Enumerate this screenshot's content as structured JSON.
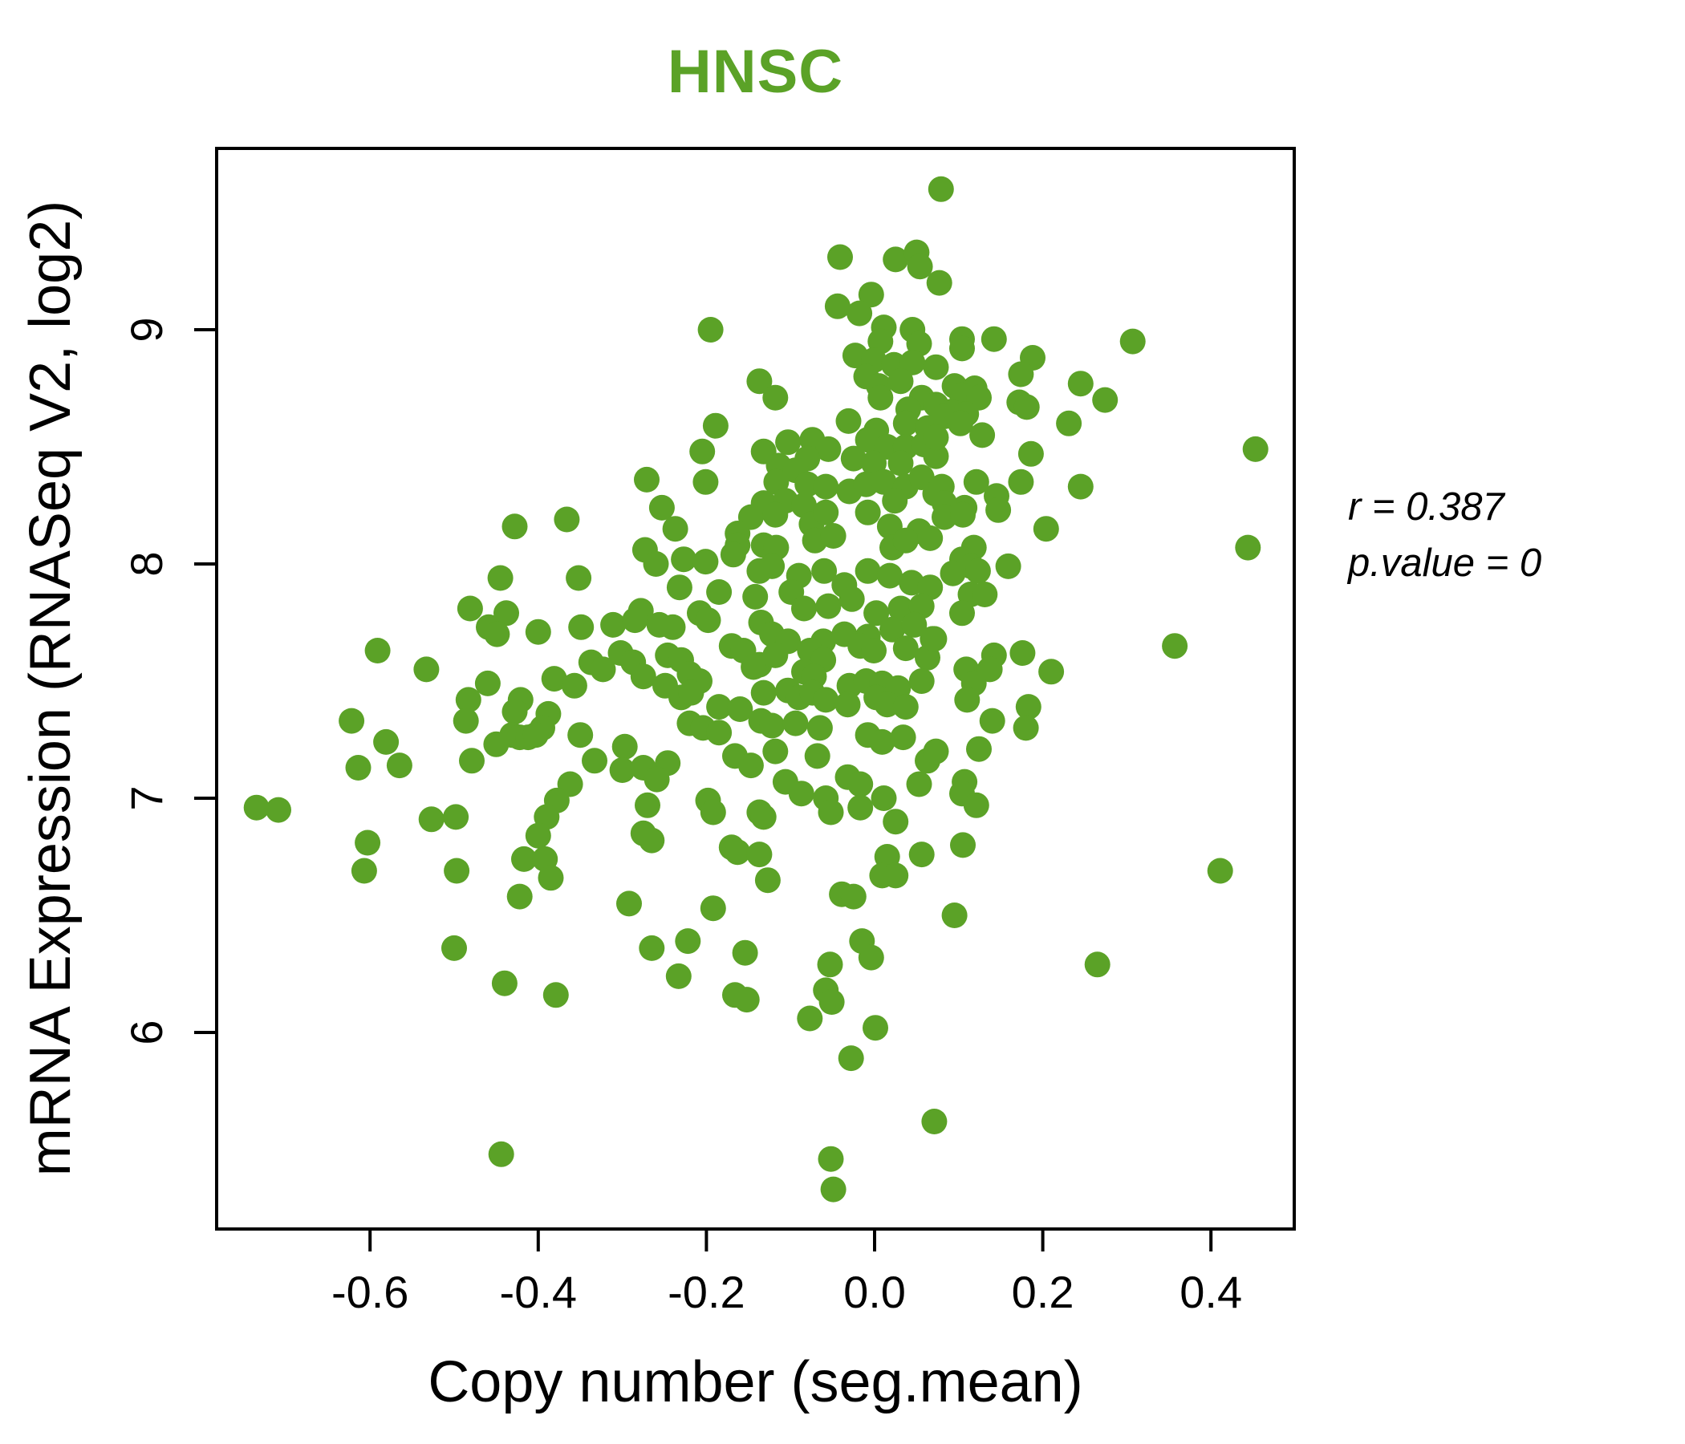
{
  "chart_data": {
    "type": "scatter",
    "title": "HNSC",
    "title_color": "#5ba227",
    "point_color": "#5ba227",
    "xlabel": "Copy number (seg.mean)",
    "ylabel": "mRNA Expression (RNASeq V2, log2)",
    "annotation": {
      "r_text": "r = 0.387",
      "p_text": "p.value = 0"
    },
    "x_ticks": [
      -0.6,
      -0.4,
      -0.2,
      0.0,
      0.2,
      0.4
    ],
    "x_tick_labels": [
      "-0.6",
      "-0.4",
      "-0.2",
      "0.0",
      "0.2",
      "0.4"
    ],
    "y_ticks": [
      6,
      7,
      8,
      9
    ],
    "y_tick_labels": [
      "6",
      "7",
      "8",
      "9"
    ],
    "xlim": [
      -0.78,
      0.5
    ],
    "ylim": [
      5.16,
      9.77
    ],
    "grid": false,
    "legend": false,
    "points": [
      [
        0.079,
        9.6
      ],
      [
        -0.041,
        9.31
      ],
      [
        0.025,
        9.3
      ],
      [
        0.05,
        9.33
      ],
      [
        0.054,
        9.27
      ],
      [
        -0.044,
        9.1
      ],
      [
        -0.004,
        9.15
      ],
      [
        -0.018,
        9.07
      ],
      [
        0.077,
        9.2
      ],
      [
        -0.195,
        9.0
      ],
      [
        0.011,
        9.01
      ],
      [
        0.045,
        9.0
      ],
      [
        0.007,
        8.95
      ],
      [
        0.053,
        8.94
      ],
      [
        -0.023,
        8.89
      ],
      [
        -0.001,
        8.87
      ],
      [
        0.023,
        8.85
      ],
      [
        0.045,
        8.86
      ],
      [
        0.073,
        8.84
      ],
      [
        -0.137,
        8.78
      ],
      [
        -0.01,
        8.8
      ],
      [
        0.005,
        8.76
      ],
      [
        0.031,
        8.78
      ],
      [
        0.056,
        8.71
      ],
      [
        -0.118,
        8.71
      ],
      [
        0.007,
        8.71
      ],
      [
        0.04,
        8.66
      ],
      [
        0.073,
        8.68
      ],
      [
        -0.189,
        8.59
      ],
      [
        -0.031,
        8.61
      ],
      [
        0.002,
        8.57
      ],
      [
        0.037,
        8.6
      ],
      [
        0.063,
        8.58
      ],
      [
        -0.205,
        8.48
      ],
      [
        -0.132,
        8.48
      ],
      [
        -0.103,
        8.52
      ],
      [
        -0.074,
        8.53
      ],
      [
        -0.055,
        8.49
      ],
      [
        -0.08,
        8.45
      ],
      [
        -0.008,
        8.53
      ],
      [
        0.015,
        8.5
      ],
      [
        0.037,
        8.5
      ],
      [
        0.059,
        8.51
      ],
      [
        -0.114,
        8.42
      ],
      [
        -0.094,
        8.4
      ],
      [
        -0.025,
        8.45
      ],
      [
        -0.001,
        8.43
      ],
      [
        0.031,
        8.43
      ],
      [
        0.073,
        8.46
      ],
      [
        -0.271,
        8.36
      ],
      [
        -0.201,
        8.35
      ],
      [
        -0.117,
        8.35
      ],
      [
        -0.08,
        8.34
      ],
      [
        -0.058,
        8.33
      ],
      [
        -0.03,
        8.31
      ],
      [
        -0.01,
        8.34
      ],
      [
        0.011,
        8.35
      ],
      [
        0.037,
        8.33
      ],
      [
        0.056,
        8.37
      ],
      [
        0.072,
        8.3
      ],
      [
        -0.253,
        8.24
      ],
      [
        -0.132,
        8.26
      ],
      [
        -0.106,
        8.27
      ],
      [
        -0.084,
        8.25
      ],
      [
        -0.008,
        8.22
      ],
      [
        0.024,
        8.27
      ],
      [
        0.104,
        8.96
      ],
      [
        0.142,
        8.96
      ],
      [
        0.104,
        8.92
      ],
      [
        0.188,
        8.88
      ],
      [
        0.307,
        8.95
      ],
      [
        0.174,
        8.81
      ],
      [
        0.095,
        8.76
      ],
      [
        0.119,
        8.75
      ],
      [
        0.104,
        8.72
      ],
      [
        0.124,
        8.71
      ],
      [
        0.245,
        8.77
      ],
      [
        0.091,
        8.65
      ],
      [
        0.109,
        8.64
      ],
      [
        0.172,
        8.69
      ],
      [
        0.181,
        8.67
      ],
      [
        0.274,
        8.7
      ],
      [
        0.083,
        8.63
      ],
      [
        0.102,
        8.6
      ],
      [
        0.231,
        8.6
      ],
      [
        0.128,
        8.55
      ],
      [
        0.073,
        8.54
      ],
      [
        0.186,
        8.47
      ],
      [
        0.453,
        8.49
      ],
      [
        0.121,
        8.35
      ],
      [
        0.174,
        8.35
      ],
      [
        0.145,
        8.29
      ],
      [
        0.245,
        8.33
      ],
      [
        0.08,
        8.33
      ],
      [
        0.107,
        8.24
      ],
      [
        0.083,
        8.26
      ],
      [
        -0.428,
        8.16
      ],
      [
        -0.366,
        8.19
      ],
      [
        -0.445,
        7.94
      ],
      [
        -0.352,
        7.94
      ],
      [
        -0.481,
        7.81
      ],
      [
        -0.438,
        7.79
      ],
      [
        -0.459,
        7.73
      ],
      [
        -0.449,
        7.7
      ],
      [
        -0.4,
        7.71
      ],
      [
        -0.349,
        7.73
      ],
      [
        -0.591,
        7.63
      ],
      [
        -0.533,
        7.55
      ],
      [
        -0.46,
        7.49
      ],
      [
        -0.381,
        7.51
      ],
      [
        -0.357,
        7.48
      ],
      [
        -0.483,
        7.42
      ],
      [
        -0.421,
        7.42
      ],
      [
        -0.428,
        7.37
      ],
      [
        -0.388,
        7.36
      ],
      [
        -0.486,
        7.33
      ],
      [
        -0.622,
        7.33
      ],
      [
        -0.395,
        7.3
      ],
      [
        -0.431,
        7.27
      ],
      [
        -0.422,
        7.26
      ],
      [
        -0.412,
        7.26
      ],
      [
        -0.403,
        7.27
      ],
      [
        -0.45,
        7.23
      ],
      [
        -0.581,
        7.24
      ],
      [
        -0.35,
        7.27
      ],
      [
        -0.479,
        7.16
      ],
      [
        -0.614,
        7.13
      ],
      [
        -0.565,
        7.14
      ],
      [
        -0.362,
        7.06
      ],
      [
        -0.378,
        6.99
      ],
      [
        -0.735,
        6.96
      ],
      [
        -0.709,
        6.95
      ],
      [
        -0.527,
        6.91
      ],
      [
        -0.498,
        6.92
      ],
      [
        -0.39,
        6.92
      ],
      [
        -0.4,
        6.84
      ],
      [
        -0.603,
        6.81
      ],
      [
        -0.417,
        6.74
      ],
      [
        -0.392,
        6.74
      ],
      [
        -0.607,
        6.69
      ],
      [
        -0.497,
        6.69
      ],
      [
        -0.147,
        8.2
      ],
      [
        -0.118,
        8.21
      ],
      [
        -0.075,
        8.17
      ],
      [
        -0.058,
        8.22
      ],
      [
        0.018,
        8.16
      ],
      [
        0.053,
        8.14
      ],
      [
        -0.237,
        8.15
      ],
      [
        -0.163,
        8.13
      ],
      [
        -0.273,
        8.06
      ],
      [
        -0.163,
        8.08
      ],
      [
        -0.132,
        8.08
      ],
      [
        -0.117,
        8.07
      ],
      [
        -0.071,
        8.1
      ],
      [
        -0.049,
        8.12
      ],
      [
        0.021,
        8.07
      ],
      [
        0.037,
        8.1
      ],
      [
        0.066,
        8.11
      ],
      [
        -0.26,
        8.0
      ],
      [
        -0.227,
        8.02
      ],
      [
        -0.201,
        8.01
      ],
      [
        -0.168,
        8.04
      ],
      [
        -0.137,
        7.97
      ],
      [
        -0.122,
        7.99
      ],
      [
        -0.09,
        7.95
      ],
      [
        -0.06,
        7.97
      ],
      [
        -0.036,
        7.91
      ],
      [
        -0.008,
        7.97
      ],
      [
        0.018,
        7.95
      ],
      [
        0.044,
        7.92
      ],
      [
        0.066,
        7.9
      ],
      [
        -0.232,
        7.9
      ],
      [
        -0.185,
        7.88
      ],
      [
        -0.142,
        7.86
      ],
      [
        -0.099,
        7.88
      ],
      [
        -0.084,
        7.81
      ],
      [
        -0.055,
        7.82
      ],
      [
        -0.027,
        7.85
      ],
      [
        0.002,
        7.79
      ],
      [
        0.031,
        7.81
      ],
      [
        0.056,
        7.82
      ],
      [
        -0.278,
        7.8
      ],
      [
        -0.208,
        7.79
      ],
      [
        -0.311,
        7.74
      ],
      [
        -0.285,
        7.76
      ],
      [
        -0.256,
        7.74
      ],
      [
        -0.24,
        7.73
      ],
      [
        -0.198,
        7.76
      ],
      [
        -0.135,
        7.75
      ],
      [
        -0.122,
        7.7
      ],
      [
        -0.103,
        7.67
      ],
      [
        -0.061,
        7.67
      ],
      [
        -0.036,
        7.7
      ],
      [
        -0.008,
        7.69
      ],
      [
        0.021,
        7.72
      ],
      [
        0.047,
        7.74
      ],
      [
        0.069,
        7.68
      ],
      [
        -0.337,
        7.58
      ],
      [
        -0.323,
        7.55
      ],
      [
        -0.302,
        7.62
      ],
      [
        -0.287,
        7.58
      ],
      [
        -0.246,
        7.61
      ],
      [
        -0.23,
        7.59
      ],
      [
        -0.17,
        7.65
      ],
      [
        -0.156,
        7.63
      ],
      [
        -0.137,
        7.57
      ],
      [
        -0.118,
        7.61
      ],
      [
        -0.077,
        7.63
      ],
      [
        -0.061,
        7.59
      ],
      [
        -0.017,
        7.65
      ],
      [
        -0.001,
        7.63
      ],
      [
        0.037,
        7.64
      ],
      [
        0.063,
        7.6
      ],
      [
        -0.275,
        7.52
      ],
      [
        -0.249,
        7.48
      ],
      [
        -0.22,
        7.53
      ],
      [
        -0.208,
        7.5
      ],
      [
        -0.144,
        7.56
      ],
      [
        -0.084,
        7.54
      ],
      [
        -0.072,
        7.52
      ],
      [
        -0.03,
        7.48
      ],
      [
        -0.01,
        7.5
      ],
      [
        0.009,
        7.49
      ],
      [
        0.028,
        7.47
      ],
      [
        0.056,
        7.5
      ],
      [
        -0.23,
        7.43
      ],
      [
        -0.218,
        7.45
      ],
      [
        -0.132,
        7.45
      ],
      [
        -0.103,
        7.46
      ],
      [
        -0.09,
        7.43
      ],
      [
        -0.074,
        7.45
      ],
      [
        -0.058,
        7.42
      ],
      [
        -0.032,
        7.4
      ],
      [
        0.002,
        7.43
      ],
      [
        0.015,
        7.4
      ],
      [
        0.037,
        7.39
      ],
      [
        -0.185,
        7.39
      ],
      [
        -0.16,
        7.38
      ],
      [
        -0.22,
        7.32
      ],
      [
        -0.204,
        7.3
      ],
      [
        -0.185,
        7.28
      ],
      [
        -0.135,
        7.33
      ],
      [
        -0.122,
        7.31
      ],
      [
        -0.094,
        7.32
      ],
      [
        -0.008,
        7.27
      ],
      [
        0.009,
        7.24
      ],
      [
        0.034,
        7.26
      ],
      [
        -0.065,
        7.3
      ],
      [
        -0.297,
        7.22
      ],
      [
        -0.333,
        7.16
      ],
      [
        -0.3,
        7.12
      ],
      [
        -0.275,
        7.13
      ],
      [
        -0.246,
        7.15
      ],
      [
        -0.166,
        7.18
      ],
      [
        -0.147,
        7.14
      ],
      [
        -0.118,
        7.2
      ],
      [
        -0.068,
        7.18
      ],
      [
        0.063,
        7.16
      ],
      [
        -0.259,
        7.08
      ],
      [
        -0.106,
        7.07
      ],
      [
        -0.087,
        7.02
      ],
      [
        -0.058,
        7.0
      ],
      [
        -0.032,
        7.09
      ],
      [
        -0.017,
        7.06
      ],
      [
        0.011,
        7.0
      ],
      [
        0.053,
        7.06
      ],
      [
        -0.27,
        6.97
      ],
      [
        -0.198,
        6.99
      ],
      [
        -0.192,
        6.94
      ],
      [
        -0.137,
        6.94
      ],
      [
        -0.132,
        6.92
      ],
      [
        -0.052,
        6.94
      ],
      [
        -0.017,
        6.96
      ],
      [
        0.025,
        6.9
      ],
      [
        -0.275,
        6.85
      ],
      [
        -0.265,
        6.82
      ],
      [
        -0.17,
        6.79
      ],
      [
        -0.163,
        6.77
      ],
      [
        -0.137,
        6.76
      ],
      [
        0.015,
        6.75
      ],
      [
        0.056,
        6.76
      ],
      [
        0.083,
        8.2
      ],
      [
        0.105,
        8.21
      ],
      [
        0.147,
        8.23
      ],
      [
        0.204,
        8.15
      ],
      [
        0.444,
        8.07
      ],
      [
        0.118,
        8.07
      ],
      [
        0.104,
        8.02
      ],
      [
        0.115,
        7.99
      ],
      [
        0.123,
        7.97
      ],
      [
        0.093,
        7.96
      ],
      [
        0.159,
        7.99
      ],
      [
        0.114,
        7.87
      ],
      [
        0.131,
        7.87
      ],
      [
        0.104,
        7.79
      ],
      [
        0.071,
        7.68
      ],
      [
        0.357,
        7.65
      ],
      [
        0.142,
        7.61
      ],
      [
        0.176,
        7.62
      ],
      [
        0.109,
        7.55
      ],
      [
        0.137,
        7.55
      ],
      [
        0.21,
        7.54
      ],
      [
        0.118,
        7.49
      ],
      [
        0.11,
        7.42
      ],
      [
        0.183,
        7.39
      ],
      [
        0.14,
        7.33
      ],
      [
        0.18,
        7.3
      ],
      [
        0.124,
        7.21
      ],
      [
        0.073,
        7.2
      ],
      [
        0.107,
        7.07
      ],
      [
        0.104,
        7.02
      ],
      [
        0.121,
        6.97
      ],
      [
        0.105,
        6.8
      ],
      [
        0.411,
        6.69
      ],
      [
        -0.385,
        6.66
      ],
      [
        -0.422,
        6.58
      ],
      [
        -0.5,
        6.36
      ],
      [
        -0.44,
        6.21
      ],
      [
        -0.379,
        6.16
      ],
      [
        -0.444,
        5.48
      ],
      [
        -0.127,
        6.65
      ],
      [
        0.009,
        6.67
      ],
      [
        0.025,
        6.67
      ],
      [
        -0.292,
        6.55
      ],
      [
        -0.192,
        6.53
      ],
      [
        -0.039,
        6.59
      ],
      [
        -0.025,
        6.58
      ],
      [
        -0.265,
        6.36
      ],
      [
        -0.222,
        6.39
      ],
      [
        -0.015,
        6.39
      ],
      [
        -0.154,
        6.34
      ],
      [
        -0.053,
        6.29
      ],
      [
        -0.004,
        6.32
      ],
      [
        -0.233,
        6.24
      ],
      [
        -0.166,
        6.16
      ],
      [
        -0.152,
        6.14
      ],
      [
        -0.058,
        6.18
      ],
      [
        -0.051,
        6.13
      ],
      [
        -0.077,
        6.06
      ],
      [
        0.001,
        6.02
      ],
      [
        -0.028,
        5.89
      ],
      [
        0.071,
        5.62
      ],
      [
        -0.052,
        5.46
      ],
      [
        -0.049,
        5.33
      ],
      [
        0.095,
        6.5
      ],
      [
        0.265,
        6.29
      ]
    ]
  }
}
